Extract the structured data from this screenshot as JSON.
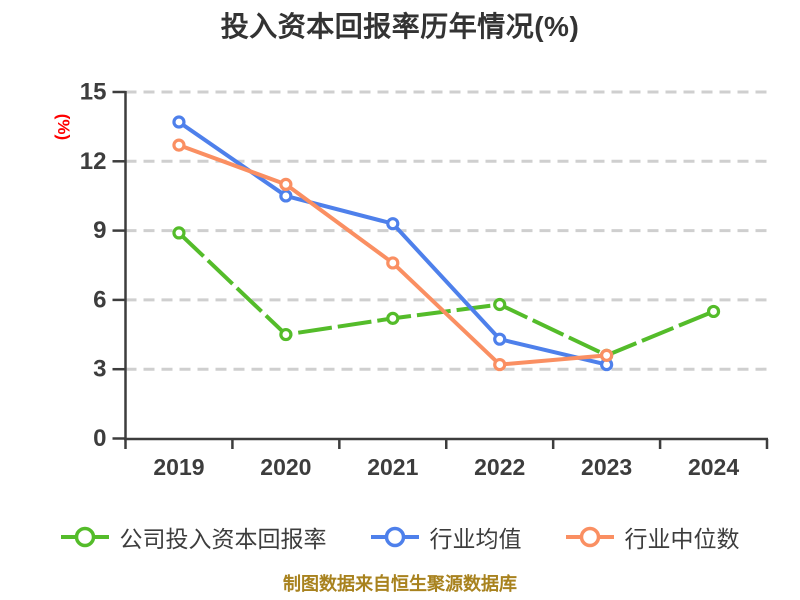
{
  "colors": {
    "title": "#333333",
    "axis": "#3D3D3D",
    "gridline": "#CFCFCF",
    "unit_label": "#FE0000",
    "caption": "#A8821E",
    "marker_fill": "#FFFFFF"
  },
  "chart_data": {
    "type": "line",
    "title": "投入资本回报率历年情况(%)",
    "ylabel": "(%)",
    "xlabel": "",
    "caption": "制图数据来自恒生聚源数据库",
    "categories": [
      "2019",
      "2020",
      "2021",
      "2022",
      "2023",
      "2024"
    ],
    "ylim": [
      0,
      15
    ],
    "ytick_step": 3,
    "grid": true,
    "grid_style": "horizontal-dashed",
    "legend_position": "bottom",
    "series": [
      {
        "name": "公司投入资本回报率",
        "color": "#54BC2A",
        "line_style": "dashed",
        "values": [
          8.9,
          4.5,
          5.2,
          5.8,
          3.6,
          5.5
        ]
      },
      {
        "name": "行业均值",
        "color": "#4E80EB",
        "line_style": "solid",
        "values": [
          13.7,
          10.5,
          9.3,
          4.3,
          3.2,
          null
        ]
      },
      {
        "name": "行业中位数",
        "color": "#FA8F62",
        "line_style": "solid",
        "values": [
          12.7,
          11,
          7.6,
          3.2,
          3.6,
          null
        ]
      }
    ]
  }
}
